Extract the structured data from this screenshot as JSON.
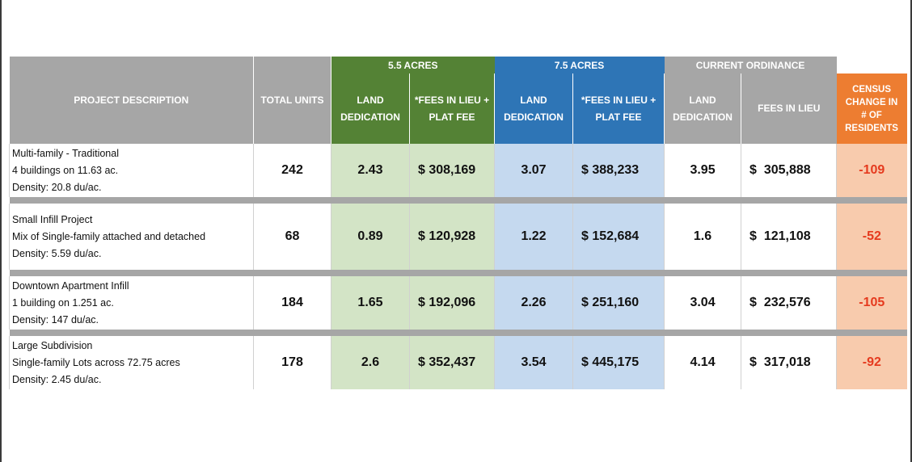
{
  "headers": {
    "project_description": "PROJECT DESCRIPTION",
    "total_units": "TOTAL UNITS",
    "group_55": "5.5 ACRES",
    "group_75": "7.5 ACRES",
    "group_current": "CURRENT ORDINANCE",
    "land_dedication_1": "LAND",
    "land_dedication_2": "DEDICATION",
    "fees_plat_1": "*FEES IN LIEU +",
    "fees_plat_2": "PLAT FEE",
    "fees_in_lieu": "FEES IN LIEU",
    "census_1": "CENSUS",
    "census_2": "CHANGE IN",
    "census_3": "# OF",
    "census_4": "RESIDENTS"
  },
  "rows": [
    {
      "name": "Multi-family - Traditional",
      "detail": "4 buildings on 11.63 ac.",
      "density": "Density: 20.8 du/ac.",
      "total_units": "242",
      "ld_55": "2.43",
      "fee_55": "$ 308,169",
      "ld_75": "3.07",
      "fee_75": "$ 388,233",
      "ld_current": "3.95",
      "fee_current": "$  305,888",
      "census": "-109"
    },
    {
      "name": "Small Infill Project",
      "detail": "Mix of Single-family attached and detached",
      "density": "Density: 5.59 du/ac.",
      "total_units": "68",
      "ld_55": "0.89",
      "fee_55": "$ 120,928",
      "ld_75": "1.22",
      "fee_75": "$ 152,684",
      "ld_current": "1.6",
      "fee_current": "$  121,108",
      "census": "-52"
    },
    {
      "name": "Downtown Apartment Infill",
      "detail": "1 building on 1.251 ac.",
      "density": "Density: 147 du/ac.",
      "total_units": "184",
      "ld_55": "1.65",
      "fee_55": "$ 192,096",
      "ld_75": "2.26",
      "fee_75": "$ 251,160",
      "ld_current": "3.04",
      "fee_current": "$  232,576",
      "census": "-105"
    },
    {
      "name": "Large Subdivision",
      "detail": "Single-family Lots across 72.75 acres",
      "density": "Density: 2.45 du/ac.",
      "total_units": "178",
      "ld_55": "2.6",
      "fee_55": "$ 352,437",
      "ld_75": "3.54",
      "fee_75": "$ 445,175",
      "ld_current": "4.14",
      "fee_current": "$  317,018",
      "census": "-92"
    }
  ],
  "colors": {
    "header_gray": "#a6a6a6",
    "header_green": "#548235",
    "header_blue": "#2e75b6",
    "header_orange": "#ed7d31",
    "cell_green": "#d3e4c6",
    "cell_blue": "#c5d9ef",
    "cell_orange": "#f8cbad",
    "census_text": "#e53a1e"
  }
}
